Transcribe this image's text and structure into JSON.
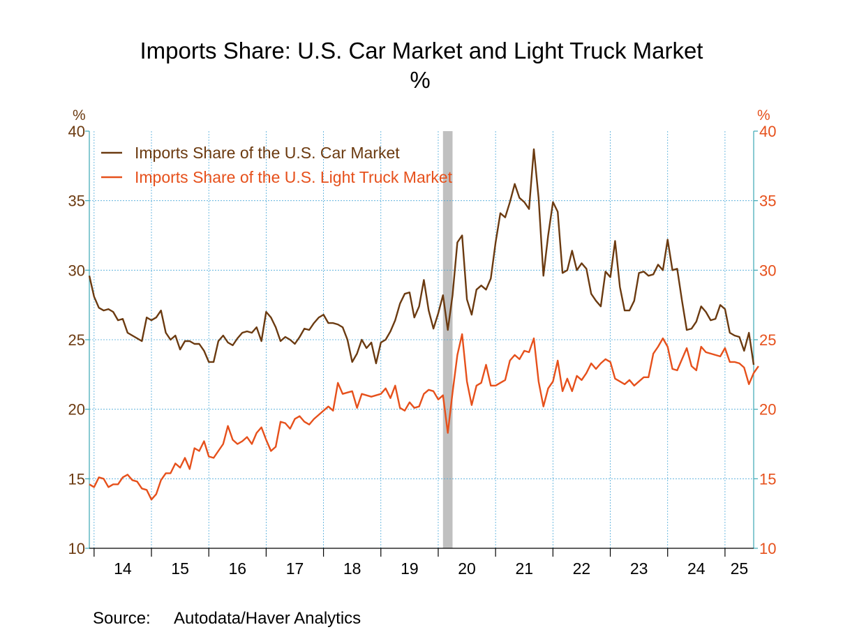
{
  "chart_data": {
    "type": "line",
    "title": "Imports Share: U.S. Car Market and Light Truck Market",
    "subtitle": "%",
    "y_left_unit": "%",
    "y_right_unit": "%",
    "ylim": [
      10,
      40
    ],
    "yticks": [
      10,
      15,
      20,
      25,
      30,
      35,
      40
    ],
    "x_range": [
      2013.917,
      2025.5
    ],
    "xtick_labels": [
      "14",
      "15",
      "16",
      "17",
      "18",
      "19",
      "20",
      "21",
      "22",
      "23",
      "24",
      "25"
    ],
    "recession_band": [
      2020.083,
      2020.25
    ],
    "grid": true,
    "legend_position": "top-left",
    "source_label": "Source:",
    "source_text": "Autodata/Haver Analytics",
    "colors": {
      "car": "#6b3a10",
      "truck": "#e6501b",
      "left_axis": "#6b3a10",
      "right_axis": "#e6501b",
      "grid": "#4aa8d8",
      "frame": "#3aa7b5",
      "recession": "#c0c0c0"
    },
    "x_start_year": 2013.917,
    "x_step_months": 1,
    "series": [
      {
        "name": "Imports Share of the U.S. Car Market",
        "key": "car",
        "values": [
          29.6,
          28.1,
          27.3,
          27.1,
          27.2,
          27.0,
          26.4,
          26.5,
          25.5,
          25.3,
          25.1,
          24.9,
          26.6,
          26.4,
          26.6,
          27.1,
          25.5,
          25.0,
          25.3,
          24.3,
          24.9,
          24.9,
          24.7,
          24.7,
          24.2,
          23.4,
          23.4,
          24.9,
          25.3,
          24.8,
          24.6,
          25.1,
          25.5,
          25.6,
          25.5,
          25.9,
          24.9,
          27.0,
          26.6,
          25.9,
          24.9,
          25.2,
          25.0,
          24.7,
          25.2,
          25.8,
          25.7,
          26.2,
          26.6,
          26.8,
          26.2,
          26.2,
          26.1,
          25.9,
          25.0,
          23.4,
          24.0,
          25.0,
          24.4,
          24.8,
          23.3,
          24.8,
          25.0,
          25.6,
          26.4,
          27.6,
          28.3,
          28.4,
          26.6,
          27.4,
          29.3,
          27.1,
          25.8,
          26.9,
          28.2,
          25.7,
          28.2,
          32.0,
          32.5,
          27.9,
          26.8,
          28.6,
          28.9,
          28.6,
          29.4,
          32.0,
          34.1,
          33.8,
          34.9,
          36.2,
          35.2,
          34.9,
          34.4,
          38.7,
          35.2,
          29.6,
          32.5,
          34.9,
          34.2,
          29.8,
          30.0,
          31.4,
          30.0,
          30.5,
          30.1,
          28.3,
          27.8,
          27.4,
          29.9,
          29.5,
          32.1,
          28.8,
          27.1,
          27.1,
          27.8,
          29.8,
          29.9,
          29.6,
          29.7,
          30.4,
          30.0,
          32.2,
          30.0,
          30.1,
          27.8,
          25.7,
          25.8,
          26.3,
          27.4,
          27.0,
          26.4,
          26.5,
          27.5,
          27.2,
          25.5,
          25.3,
          25.2,
          24.2,
          25.5,
          23.2
        ]
      },
      {
        "name": "Imports Share of the U.S. Light Truck Market",
        "key": "truck",
        "values": [
          14.6,
          14.4,
          15.1,
          15.0,
          14.4,
          14.6,
          14.6,
          15.1,
          15.3,
          14.9,
          14.8,
          14.3,
          14.2,
          13.5,
          13.9,
          14.9,
          15.4,
          15.4,
          16.1,
          15.8,
          16.5,
          15.7,
          17.2,
          17.0,
          17.7,
          16.6,
          16.5,
          17.0,
          17.5,
          18.8,
          17.8,
          17.5,
          17.7,
          18.0,
          17.5,
          18.3,
          18.7,
          17.8,
          17.0,
          17.3,
          19.1,
          19.0,
          18.6,
          19.3,
          19.5,
          19.1,
          18.9,
          19.3,
          19.6,
          19.9,
          20.2,
          19.9,
          21.9,
          21.1,
          21.2,
          21.3,
          20.1,
          21.1,
          21.0,
          20.9,
          21.0,
          21.1,
          21.5,
          20.8,
          21.7,
          20.1,
          19.9,
          20.5,
          20.1,
          20.2,
          21.1,
          21.4,
          21.3,
          20.7,
          21.0,
          18.3,
          21.2,
          23.9,
          25.4,
          22.0,
          20.3,
          21.7,
          21.9,
          23.2,
          21.7,
          21.7,
          21.9,
          22.1,
          23.5,
          23.9,
          23.6,
          24.2,
          24.1,
          25.1,
          22.0,
          20.2,
          21.5,
          22.0,
          23.5,
          21.3,
          22.2,
          21.3,
          22.4,
          22.1,
          22.6,
          23.3,
          22.9,
          23.3,
          23.6,
          23.4,
          22.2,
          22.0,
          21.8,
          22.1,
          21.7,
          22.0,
          22.3,
          22.3,
          24.0,
          24.5,
          25.1,
          24.5,
          22.9,
          22.8,
          23.6,
          24.4,
          23.1,
          22.8,
          24.5,
          24.1,
          24.0,
          23.9,
          23.8,
          24.4,
          23.4,
          23.4,
          23.3,
          23.0,
          21.8,
          22.6,
          23.1
        ]
      }
    ]
  }
}
